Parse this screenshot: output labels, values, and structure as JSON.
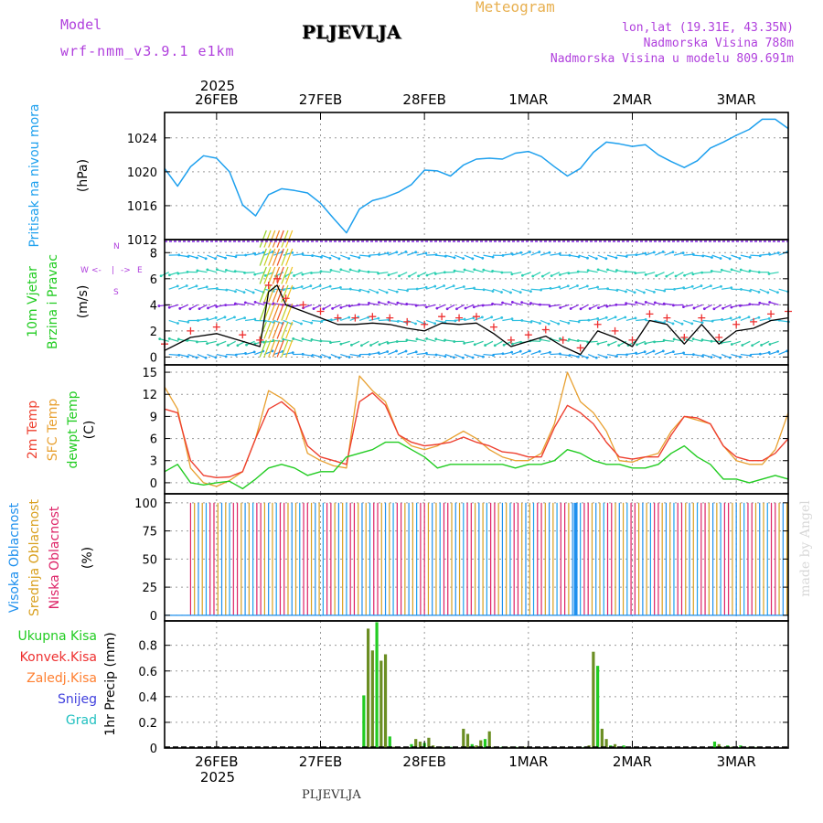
{
  "header": {
    "model_label": "Model",
    "model_name": "wrf-nmm_v3.9.1 e1km",
    "station": "PLJEVLJA",
    "meteogram_label": "Meteogram",
    "coords": "lon,lat (19.31E, 43.35N)",
    "elevation": "Nadmorska Visina 788m",
    "model_elevation": "Nadmorska Visina u modelu 809.691m",
    "footer_station": "PLJEVLJA",
    "signature": "made by Angel"
  },
  "time_axis": {
    "top_year": "2025",
    "bottom_year": "2025",
    "ticks": [
      {
        "label": "26FEB",
        "hour": 12
      },
      {
        "label": "27FEB",
        "hour": 36
      },
      {
        "label": "28FEB",
        "hour": 60
      },
      {
        "label": "1MAR",
        "hour": 84
      },
      {
        "label": "2MAR",
        "hour": 108
      },
      {
        "label": "3MAR",
        "hour": 132
      }
    ],
    "range_hours": [
      0,
      144
    ]
  },
  "colors": {
    "pressure": "#1ea0ee",
    "t2m": "#ee4030",
    "sfc": "#e8a030",
    "dewpt": "#22cc22",
    "wind_black": "#000000",
    "wind_plus": "#ee3030",
    "cloud_high": "#1e90ee",
    "cloud_mid": "#d9a020",
    "cloud_low": "#dd2266",
    "precip_total": "#6b8e23",
    "precip_conv": "#ee3030",
    "precip_frozen": "#ff7f30",
    "precip_snow": "#4040dd",
    "precip_hail": "#20c0c0",
    "label_purple": "#b040dd",
    "label_gold": "#e8b050"
  },
  "panels": {
    "pressure": {
      "labels": [
        "Pritisak na nivou mora",
        "(hPa)"
      ],
      "yticks": [
        "1012",
        "1016",
        "1020",
        "1024"
      ]
    },
    "wind": {
      "labels": [
        "10m Vjetar",
        "Brzina i Pravac",
        "(m/s)"
      ],
      "compass": [
        "W",
        "<-",
        "|",
        "->",
        "E",
        "N",
        "S"
      ],
      "yticks": [
        "0",
        "2",
        "4",
        "6",
        "8"
      ]
    },
    "temp": {
      "labels": [
        "2m Temp",
        "SFC Temp",
        "dewpt Temp",
        "(C)"
      ],
      "yticks": [
        "0",
        "3",
        "6",
        "9",
        "12",
        "15"
      ]
    },
    "cloud": {
      "labels": [
        "Visoka Oblacnost",
        "Srednja Oblacnost",
        "Niska Oblacnost",
        "(%)"
      ],
      "yticks": [
        "0",
        "25",
        "50",
        "75",
        "100"
      ]
    },
    "precip": {
      "labels": [
        "Ukupna Kisa",
        "Konvek.Kisa",
        "Zaledj.Kisa",
        "Snijeg",
        "Grad",
        "1hr Precip (mm)"
      ],
      "yticks": [
        "0",
        "0.2",
        "0.4",
        "0.6",
        "0.8"
      ]
    }
  },
  "chart_data": [
    {
      "type": "line",
      "name": "pressure",
      "ylim": [
        1012,
        1027
      ],
      "x": [
        0,
        3,
        6,
        9,
        12,
        15,
        18,
        21,
        24,
        27,
        30,
        33,
        36,
        39,
        42,
        45,
        48,
        51,
        54,
        57,
        60,
        63,
        66,
        69,
        72,
        75,
        78,
        81,
        84,
        87,
        90,
        93,
        96,
        99,
        102,
        105,
        108,
        111,
        114,
        117,
        120,
        123,
        126,
        129,
        132,
        135,
        138,
        141,
        144
      ],
      "series": [
        {
          "name": "pressure",
          "values": [
            1020.4,
            1018.3,
            1020.6,
            1021.9,
            1021.6,
            1020.0,
            1016.1,
            1014.8,
            1017.3,
            1018.0,
            1017.8,
            1017.5,
            1016.3,
            1014.5,
            1012.8,
            1015.6,
            1016.6,
            1017.0,
            1017.6,
            1018.5,
            1020.2,
            1020.1,
            1019.5,
            1020.8,
            1021.5,
            1021.6,
            1021.5,
            1022.2,
            1022.4,
            1021.8,
            1020.6,
            1019.5,
            1020.4,
            1022.3,
            1023.5,
            1023.3,
            1023.0,
            1023.2,
            1022.0,
            1021.2,
            1020.5,
            1021.3,
            1022.8,
            1023.5,
            1024.3,
            1025.0,
            1026.2,
            1026.2,
            1025.1
          ]
        }
      ]
    },
    {
      "type": "line",
      "name": "wind_speed",
      "ylim": [
        -0.6,
        9
      ],
      "x": [
        0,
        6,
        12,
        18,
        22,
        24,
        26,
        28,
        32,
        36,
        40,
        44,
        48,
        52,
        56,
        60,
        64,
        68,
        72,
        76,
        80,
        84,
        88,
        92,
        96,
        100,
        104,
        108,
        112,
        116,
        120,
        124,
        128,
        132,
        136,
        140,
        144
      ],
      "series": [
        {
          "name": "speed",
          "values": [
            0.5,
            1.5,
            1.8,
            1.2,
            0.8,
            5.0,
            5.5,
            4.0,
            3.5,
            3.0,
            2.5,
            2.5,
            2.6,
            2.5,
            2.2,
            2.0,
            2.6,
            2.5,
            2.6,
            1.8,
            0.8,
            1.2,
            1.6,
            0.8,
            0.2,
            2.0,
            1.5,
            0.8,
            2.8,
            2.5,
            1.0,
            2.5,
            1.0,
            2.0,
            2.2,
            2.8,
            3.0
          ]
        }
      ]
    },
    {
      "type": "line",
      "name": "temperature",
      "ylim": [
        -1.5,
        16
      ],
      "x": [
        0,
        3,
        6,
        9,
        12,
        15,
        18,
        21,
        24,
        27,
        30,
        33,
        36,
        39,
        42,
        45,
        48,
        51,
        54,
        57,
        60,
        63,
        66,
        69,
        72,
        75,
        78,
        81,
        84,
        87,
        90,
        93,
        96,
        99,
        102,
        105,
        108,
        111,
        114,
        117,
        120,
        123,
        126,
        129,
        132,
        135,
        138,
        141,
        144
      ],
      "series": [
        {
          "name": "2m",
          "values": [
            10.0,
            9.5,
            3.0,
            1.0,
            0.7,
            0.8,
            1.5,
            6.0,
            10.0,
            11.0,
            9.5,
            5.0,
            3.5,
            3.0,
            2.5,
            11.0,
            12.2,
            10.5,
            6.5,
            5.5,
            5.0,
            5.2,
            5.5,
            6.2,
            5.5,
            5.0,
            4.2,
            4.0,
            3.5,
            3.5,
            7.5,
            10.5,
            9.5,
            8.0,
            5.5,
            3.5,
            3.2,
            3.5,
            3.5,
            6.5,
            9.0,
            8.8,
            8.0,
            5.0,
            3.5,
            3.0,
            3.0,
            4.0,
            6.0
          ]
        },
        {
          "name": "SFC",
          "values": [
            13.0,
            10.0,
            2.0,
            0.0,
            -0.5,
            0.3,
            1.5,
            6.0,
            12.5,
            11.5,
            10.0,
            4.0,
            3.0,
            2.3,
            2.0,
            14.5,
            12.5,
            11.0,
            6.5,
            5.0,
            4.5,
            5.0,
            6.0,
            7.0,
            6.0,
            4.5,
            3.5,
            3.0,
            3.0,
            4.0,
            8.0,
            15.0,
            11.0,
            9.5,
            7.0,
            3.0,
            2.8,
            3.5,
            4.0,
            7.0,
            9.0,
            8.5,
            8.0,
            5.0,
            3.0,
            2.5,
            2.5,
            4.5,
            9.5
          ]
        },
        {
          "name": "dewpt",
          "values": [
            1.5,
            2.5,
            0.0,
            -0.3,
            0.0,
            0.2,
            -0.8,
            0.5,
            2.0,
            2.5,
            2.0,
            1.0,
            1.5,
            1.5,
            3.5,
            4.0,
            4.5,
            5.5,
            5.5,
            4.5,
            3.5,
            2.0,
            2.5,
            2.5,
            2.5,
            2.5,
            2.5,
            2.0,
            2.5,
            2.5,
            3.0,
            4.5,
            4.0,
            3.0,
            2.5,
            2.5,
            2.0,
            2.0,
            2.5,
            4.0,
            5.0,
            3.5,
            2.5,
            0.5,
            0.5,
            0.0,
            0.5,
            1.0,
            0.5
          ]
        }
      ]
    },
    {
      "type": "bar",
      "name": "cloud_cover",
      "ylim": [
        0,
        100
      ],
      "x_start_hour": 6,
      "x_end_hour": 144,
      "step_hours": 0.5,
      "series": [
        {
          "name": "high",
          "values": [
            100
          ]
        },
        {
          "name": "mid",
          "values": [
            100
          ]
        },
        {
          "name": "low",
          "values": [
            100
          ]
        }
      ]
    },
    {
      "type": "bar",
      "name": "precip_1hr",
      "ylim": [
        0,
        0.99
      ],
      "x": [
        46,
        47,
        48,
        49,
        50,
        51,
        52,
        53,
        56,
        57,
        58,
        59,
        60,
        61,
        62,
        63,
        64,
        65,
        66,
        69,
        70,
        71,
        72,
        73,
        74,
        75,
        76,
        78,
        79,
        80,
        81,
        82,
        83,
        97,
        98,
        99,
        100,
        101,
        102,
        103,
        104,
        105,
        106,
        107,
        126,
        127,
        128,
        129,
        130,
        131,
        132,
        133,
        134,
        135,
        136,
        137
      ],
      "series": [
        {
          "name": "total",
          "values": [
            0.41,
            0.93,
            0.76,
            0.98,
            0.68,
            0.73,
            0.09,
            0.01,
            0.01,
            0.03,
            0.07,
            0.05,
            0.04,
            0.08,
            0.02,
            0.01,
            0.01,
            0.01,
            0.01,
            0.15,
            0.11,
            0.03,
            0.02,
            0.06,
            0.07,
            0.13,
            0.01,
            0.01,
            0.01,
            0.01,
            0.01,
            0.01,
            0.01,
            0.01,
            0.02,
            0.75,
            0.64,
            0.15,
            0.07,
            0.02,
            0.03,
            0.01,
            0.02,
            0.01,
            0.01,
            0.05,
            0.03,
            0.01,
            0.02,
            0.01,
            0.01,
            0.02,
            0.01,
            0.01,
            0.01,
            0.01
          ]
        }
      ]
    }
  ]
}
